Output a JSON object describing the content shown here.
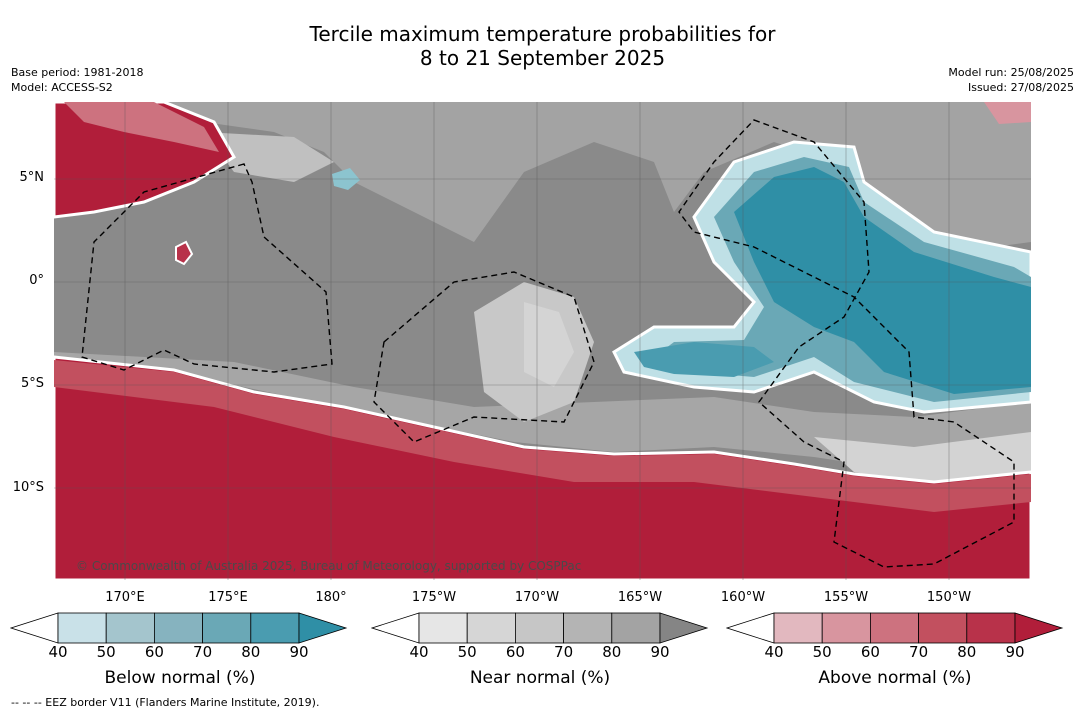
{
  "title": {
    "line1": "Tercile maximum temperature probabilities for",
    "line2": "8 to 21 September 2025"
  },
  "meta": {
    "base_period": "Base period: 1981-2018",
    "model": "Model: ACCESS-S2",
    "model_run": "Model run: 25/08/2025",
    "issued": "Issued: 27/08/2025"
  },
  "map": {
    "lat_labels": [
      "5°N",
      "0°",
      "5°S",
      "10°S"
    ],
    "lon_labels": [
      "170°E",
      "175°E",
      "180°",
      "175°W",
      "170°W",
      "165°W",
      "160°W",
      "155°W",
      "150°W"
    ],
    "copyright": "© Commonwealth of Australia 2025, Bureau of Meteorology, supported by COSPPac",
    "colors": {
      "below_strong": "#2f8fa6",
      "near_dark": "#898989",
      "near_mid": "#a6a6a6",
      "near_light": "#d3d3d3",
      "above_strong": "#b11e3a"
    }
  },
  "colorbars": [
    {
      "label": "Below normal (%)",
      "ticks": [
        "40",
        "50",
        "60",
        "70",
        "80",
        "90"
      ],
      "colors": [
        "#c9e1e8",
        "#a4c5cd",
        "#86b3bf",
        "#6aa8b6",
        "#4a9cb0",
        "#2f8fa6"
      ]
    },
    {
      "label": "Near normal (%)",
      "ticks": [
        "40",
        "50",
        "60",
        "70",
        "80",
        "90"
      ],
      "colors": [
        "#e6e6e6",
        "#d6d6d6",
        "#c6c6c6",
        "#b4b4b4",
        "#a3a3a3",
        "#858585"
      ]
    },
    {
      "label": "Above normal (%)",
      "ticks": [
        "40",
        "50",
        "60",
        "70",
        "80",
        "90"
      ],
      "colors": [
        "#e2b8bf",
        "#d8959f",
        "#cd727f",
        "#c2505f",
        "#b8324a",
        "#b11e3a"
      ]
    }
  ],
  "footer": "--  --  -- EEZ border V11 (Flanders Marine Institute, 2019)."
}
